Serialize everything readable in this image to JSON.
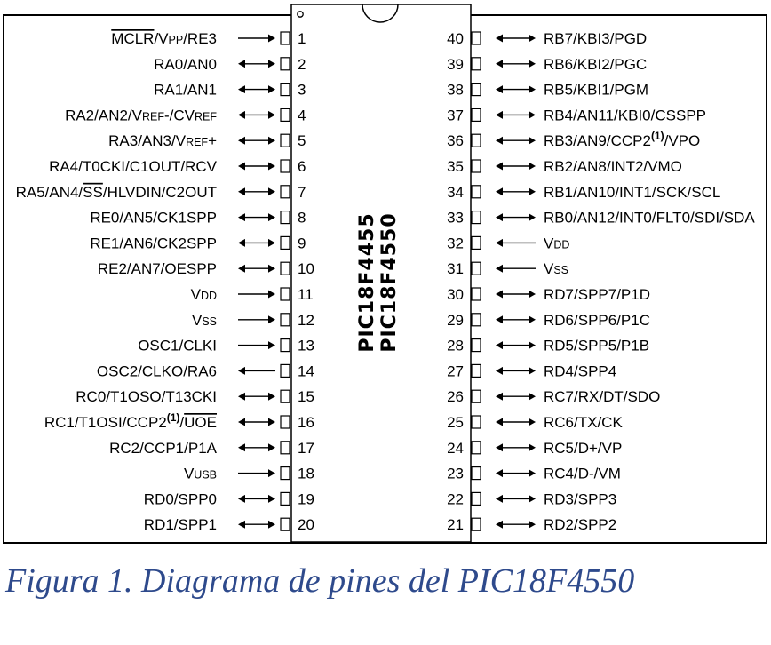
{
  "chip": {
    "names": [
      "PIC18F4455",
      "PIC18F4550"
    ],
    "left_pins": [
      {
        "num": "1",
        "label": [
          {
            "t": "MCLR",
            "over": true
          },
          {
            "t": "/V"
          },
          {
            "t": "PP",
            "sc": true
          },
          {
            "t": "/RE3"
          }
        ],
        "dir": "in"
      },
      {
        "num": "2",
        "label": [
          {
            "t": "RA0/AN0"
          }
        ],
        "dir": "bi"
      },
      {
        "num": "3",
        "label": [
          {
            "t": "RA1/AN1"
          }
        ],
        "dir": "bi"
      },
      {
        "num": "4",
        "label": [
          {
            "t": "RA2/AN2/V"
          },
          {
            "t": "REF",
            "sc": true
          },
          {
            "t": "-/CV"
          },
          {
            "t": "REF",
            "sc": true
          }
        ],
        "dir": "bi"
      },
      {
        "num": "5",
        "label": [
          {
            "t": "RA3/AN3/V"
          },
          {
            "t": "REF",
            "sc": true
          },
          {
            "t": "+"
          }
        ],
        "dir": "bi"
      },
      {
        "num": "6",
        "label": [
          {
            "t": "RA4/T0CKI/C1OUT/RCV"
          }
        ],
        "dir": "bi"
      },
      {
        "num": "7",
        "label": [
          {
            "t": "RA5/AN4/"
          },
          {
            "t": "SS",
            "over": true
          },
          {
            "t": "/HLVDIN/C2OUT"
          }
        ],
        "dir": "bi"
      },
      {
        "num": "8",
        "label": [
          {
            "t": "RE0/AN5/CK1SPP"
          }
        ],
        "dir": "bi"
      },
      {
        "num": "9",
        "label": [
          {
            "t": "RE1/AN6/CK2SPP"
          }
        ],
        "dir": "bi"
      },
      {
        "num": "10",
        "label": [
          {
            "t": "RE2/AN7/OESPP"
          }
        ],
        "dir": "bi"
      },
      {
        "num": "11",
        "label": [
          {
            "t": "V"
          },
          {
            "t": "DD",
            "sc": true
          }
        ],
        "dir": "in"
      },
      {
        "num": "12",
        "label": [
          {
            "t": "V"
          },
          {
            "t": "SS",
            "sc": true
          }
        ],
        "dir": "in"
      },
      {
        "num": "13",
        "label": [
          {
            "t": "OSC1/CLKI"
          }
        ],
        "dir": "in"
      },
      {
        "num": "14",
        "label": [
          {
            "t": "OSC2/CLKO/RA6"
          }
        ],
        "dir": "out"
      },
      {
        "num": "15",
        "label": [
          {
            "t": "RC0/T1OSO/T13CKI"
          }
        ],
        "dir": "bi"
      },
      {
        "num": "16",
        "label": [
          {
            "t": "RC1/T1OSI/CCP2"
          },
          {
            "t": "(1)",
            "sup": true
          },
          {
            "t": "/"
          },
          {
            "t": "UOE",
            "over": true
          }
        ],
        "dir": "bi"
      },
      {
        "num": "17",
        "label": [
          {
            "t": "RC2/CCP1/P1A"
          }
        ],
        "dir": "bi"
      },
      {
        "num": "18",
        "label": [
          {
            "t": "V"
          },
          {
            "t": "USB",
            "sc": true
          }
        ],
        "dir": "in"
      },
      {
        "num": "19",
        "label": [
          {
            "t": "RD0/SPP0"
          }
        ],
        "dir": "bi"
      },
      {
        "num": "20",
        "label": [
          {
            "t": "RD1/SPP1"
          }
        ],
        "dir": "bi"
      }
    ],
    "right_pins": [
      {
        "num": "40",
        "label": [
          {
            "t": "RB7/KBI3/PGD"
          }
        ],
        "dir": "bi"
      },
      {
        "num": "39",
        "label": [
          {
            "t": "RB6/KBI2/PGC"
          }
        ],
        "dir": "bi"
      },
      {
        "num": "38",
        "label": [
          {
            "t": "RB5/KBI1/PGM"
          }
        ],
        "dir": "bi"
      },
      {
        "num": "37",
        "label": [
          {
            "t": "RB4/AN11/KBI0/CSSPP"
          }
        ],
        "dir": "bi"
      },
      {
        "num": "36",
        "label": [
          {
            "t": "RB3/AN9/CCP2"
          },
          {
            "t": "(1)",
            "sup": true
          },
          {
            "t": "/VPO"
          }
        ],
        "dir": "bi"
      },
      {
        "num": "35",
        "label": [
          {
            "t": "RB2/AN8/INT2/VMO"
          }
        ],
        "dir": "bi"
      },
      {
        "num": "34",
        "label": [
          {
            "t": "RB1/AN10/INT1/SCK/SCL"
          }
        ],
        "dir": "bi"
      },
      {
        "num": "33",
        "label": [
          {
            "t": "RB0/AN12/INT0/FLT0/SDI/SDA"
          }
        ],
        "dir": "bi"
      },
      {
        "num": "32",
        "label": [
          {
            "t": "V"
          },
          {
            "t": "DD",
            "sc": true
          }
        ],
        "dir": "in"
      },
      {
        "num": "31",
        "label": [
          {
            "t": "V"
          },
          {
            "t": "SS",
            "sc": true
          }
        ],
        "dir": "in"
      },
      {
        "num": "30",
        "label": [
          {
            "t": "RD7/SPP7/P1D"
          }
        ],
        "dir": "bi"
      },
      {
        "num": "29",
        "label": [
          {
            "t": "RD6/SPP6/P1C"
          }
        ],
        "dir": "bi"
      },
      {
        "num": "28",
        "label": [
          {
            "t": "RD5/SPP5/P1B"
          }
        ],
        "dir": "bi"
      },
      {
        "num": "27",
        "label": [
          {
            "t": "RD4/SPP4"
          }
        ],
        "dir": "bi"
      },
      {
        "num": "26",
        "label": [
          {
            "t": "RC7/RX/DT/SDO"
          }
        ],
        "dir": "bi"
      },
      {
        "num": "25",
        "label": [
          {
            "t": "RC6/TX/CK"
          }
        ],
        "dir": "bi"
      },
      {
        "num": "24",
        "label": [
          {
            "t": "RC5/D+/VP"
          }
        ],
        "dir": "bi"
      },
      {
        "num": "23",
        "label": [
          {
            "t": "RC4/D-/VM"
          }
        ],
        "dir": "bi"
      },
      {
        "num": "22",
        "label": [
          {
            "t": "RD3/SPP3"
          }
        ],
        "dir": "bi"
      },
      {
        "num": "21",
        "label": [
          {
            "t": "RD2/SPP2"
          }
        ],
        "dir": "bi"
      }
    ]
  },
  "caption": "Figura 1. Diagrama de pines del PIC18F4550"
}
